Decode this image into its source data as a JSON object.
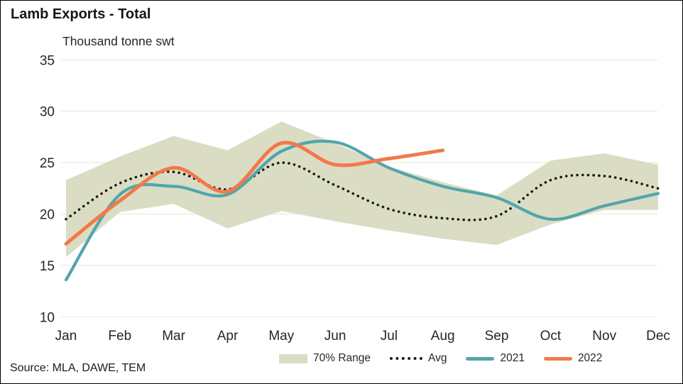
{
  "title": "Lamb Exports - Total",
  "subtitle": "Thousand tonne swt",
  "source": "Source: MLA, DAWE, TEM",
  "colors": {
    "band": "#dbdcc4",
    "avg": "#1a1a1a",
    "y2021": "#52a5ab",
    "y2022": "#f2794b",
    "gridline": "#f1efe2",
    "axis_text": "#262626"
  },
  "chart_data": {
    "type": "line",
    "title": "Lamb Exports - Total",
    "ylabel": "Thousand tonne swt",
    "xlabel": "",
    "ylim": [
      10,
      35
    ],
    "y_ticks": [
      10,
      15,
      20,
      25,
      30,
      35
    ],
    "grid": "horizontal",
    "legend_position": "bottom",
    "categories": [
      "Jan",
      "Feb",
      "Mar",
      "Apr",
      "May",
      "Jun",
      "Jul",
      "Aug",
      "Sep",
      "Oct",
      "Nov",
      "Dec"
    ],
    "series": [
      {
        "name": "70% Range",
        "type": "band",
        "upper": [
          23.3,
          25.6,
          27.6,
          26.2,
          29.0,
          26.9,
          24.6,
          23.1,
          21.8,
          25.2,
          25.9,
          24.8
        ],
        "lower": [
          15.8,
          20.2,
          21.0,
          18.6,
          20.3,
          19.3,
          18.4,
          17.6,
          17.0,
          19.0,
          20.4,
          20.4
        ]
      },
      {
        "name": "Avg",
        "type": "dotted-line",
        "values": [
          19.5,
          23.0,
          24.1,
          22.4,
          25.0,
          22.8,
          20.5,
          19.6,
          19.8,
          23.3,
          23.7,
          22.5
        ]
      },
      {
        "name": "2021",
        "type": "line",
        "values": [
          13.6,
          21.9,
          22.7,
          21.9,
          26.1,
          27.0,
          24.5,
          22.7,
          21.6,
          19.5,
          20.8,
          22.0
        ]
      },
      {
        "name": "2022",
        "type": "line",
        "values": [
          17.1,
          21.3,
          24.5,
          22.2,
          26.9,
          24.8,
          25.4,
          26.2
        ]
      }
    ]
  }
}
